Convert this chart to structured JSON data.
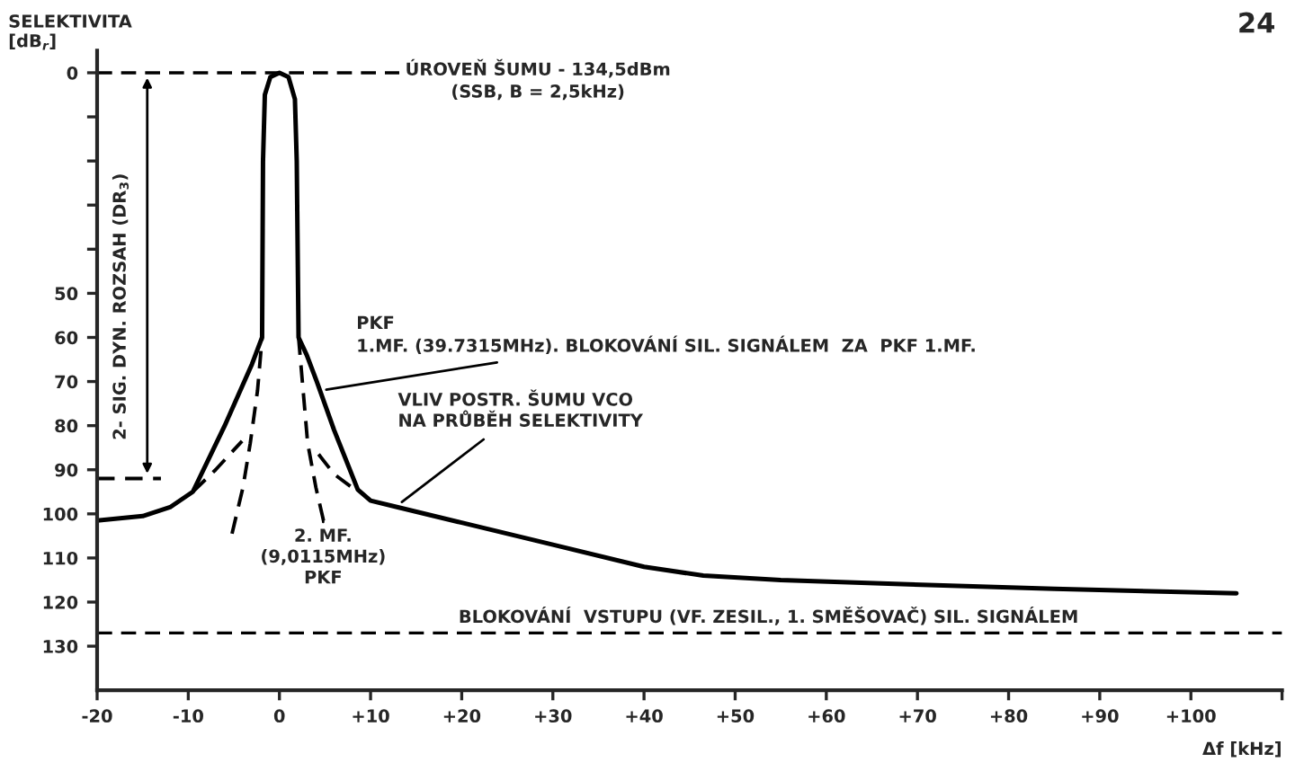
{
  "chart_data": {
    "type": "line",
    "ylabel": "SELEKTIVITA\n[dB$_{r}$]",
    "xlabel": "Δf [kHz]",
    "xlim": [
      -20,
      110
    ],
    "ylim": [
      140,
      -5
    ],
    "xticks": [
      {
        "value": -20,
        "label": "-20"
      },
      {
        "value": -10,
        "label": "-10"
      },
      0,
      {
        "value": 10,
        "label": "+10"
      },
      {
        "value": 20,
        "label": "+20"
      },
      {
        "value": 30,
        "label": "+30"
      },
      {
        "value": 40,
        "label": "+40"
      },
      {
        "value": 50,
        "label": "+50"
      },
      {
        "value": 60,
        "label": "+60"
      },
      {
        "value": 70,
        "label": "+70"
      },
      {
        "value": 80,
        "label": "+80"
      },
      {
        "value": 90,
        "label": "+90"
      },
      {
        "value": 100,
        "label": "+100"
      },
      {
        "value": 110,
        "label": null
      }
    ],
    "yticks": [
      0,
      {
        "value": 10,
        "label": null
      },
      {
        "value": 20,
        "label": null
      },
      {
        "value": 30,
        "label": null
      },
      {
        "value": 40,
        "label": null
      },
      50,
      60,
      70,
      80,
      90,
      100,
      110,
      120,
      130
    ],
    "grid": false,
    "legend": false,
    "marker": "none",
    "series": [
      {
        "color": "#000000",
        "line_style": "solid",
        "x": [
          -20,
          -15,
          -12,
          -9.5,
          -6,
          -3,
          -1.9,
          -1.8,
          -1.6,
          -1,
          0,
          1,
          1.7,
          1.9,
          2.1,
          3,
          4.1,
          6,
          8.6,
          10,
          13,
          20,
          30,
          40,
          46.5,
          55,
          69,
          85,
          105
        ],
        "values": [
          101.5,
          100.5,
          98.5,
          95,
          80,
          66,
          60,
          20,
          5,
          1,
          0,
          1,
          6,
          20,
          60,
          64,
          70,
          81,
          94.5,
          97,
          98.5,
          102,
          107,
          112,
          114,
          115,
          116,
          117,
          118
        ]
      },
      {
        "color": "#000000",
        "line_style": "dashed",
        "x": [
          -9.5,
          -7,
          -4.1
        ],
        "values": [
          95,
          90,
          83.5
        ]
      },
      {
        "color": "#000000",
        "line_style": "dashed",
        "x": [
          -5.2,
          -4,
          -3.2,
          -2.4,
          -1.9
        ],
        "values": [
          104.5,
          94,
          84,
          72,
          60
        ]
      },
      {
        "color": "#000000",
        "line_style": "dashed",
        "x": [
          2.1,
          2.6,
          3.1,
          4,
          5
        ],
        "values": [
          60,
          72,
          84,
          94,
          103
        ]
      },
      {
        "color": "#000000",
        "line_style": "dashed",
        "x": [
          4.3,
          6,
          8.6
        ],
        "values": [
          86.5,
          91,
          95
        ]
      },
      {
        "color": "#000000",
        "line_style": "dashed",
        "x": [
          -20,
          -13
        ],
        "values": [
          92,
          92
        ]
      }
    ],
    "ref_lines": [
      {
        "axis": "y",
        "value": 0,
        "color": "#000000",
        "line_style": "dashed"
      },
      {
        "axis": "y",
        "value": 127,
        "label": "BLOKOVÁNÍ  VSTUPU (VF. ZESIL., 1. SMĚŠOVAČ) SIL. SIGNÁLEM",
        "color": "#000000",
        "line_style": "dashed"
      }
    ],
    "annotations": [
      {
        "text": "PKF\n1.MF. (39.7315MHz). BLOKOVÁNÍ SIL. SIGNÁLEM  ZA  PKF 1.MF.",
        "x": 4.6,
        "y": 72
      },
      {
        "text": "VLIV POSTR. ŠUMU VCO\nNA PRŮBĚH SELEKTIVITY",
        "x": 13,
        "y": 98
      },
      {
        "text": "2. MF.\n(9,0115MHz)\nPKF",
        "x": 4.8,
        "y": 101
      },
      "2- SIG. DYN. ROZSAH (DR$_{3}$)",
      "ÚROVEŇ ŠUMU - 134,5dBm\n(SSB, B = 2,5kHz)",
      "24"
    ]
  }
}
